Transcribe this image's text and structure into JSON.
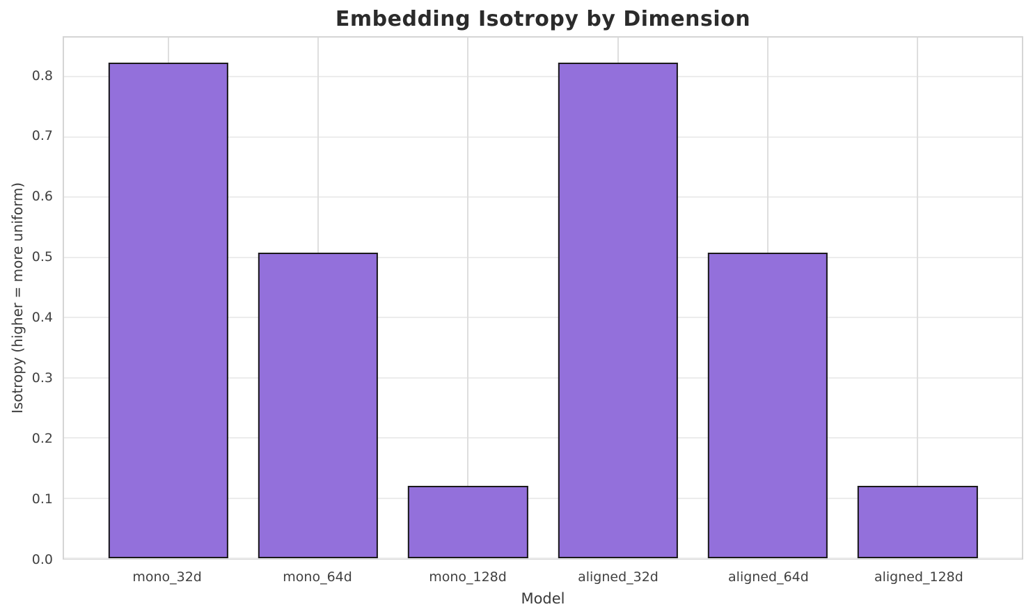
{
  "chart_data": {
    "type": "bar",
    "title": "Embedding Isotropy by Dimension",
    "xlabel": "Model",
    "ylabel": "Isotropy (higher = more uniform)",
    "categories": [
      "mono_32d",
      "mono_64d",
      "mono_128d",
      "aligned_32d",
      "aligned_64d",
      "aligned_128d"
    ],
    "values": [
      0.823,
      0.508,
      0.12,
      0.823,
      0.508,
      0.12
    ],
    "yticks": [
      0.0,
      0.1,
      0.2,
      0.3,
      0.4,
      0.5,
      0.6,
      0.7,
      0.8
    ],
    "ylim": [
      0,
      0.865
    ],
    "grid": true,
    "legend": null,
    "colors": {
      "bar_fill": "#9370DB",
      "bar_edge": "#1a1a1a",
      "grid_h": "#ececec",
      "grid_v": "#dedede",
      "spine": "#d5d5d5",
      "title_text": "#2b2b2b",
      "tick_text": "#404040"
    }
  }
}
